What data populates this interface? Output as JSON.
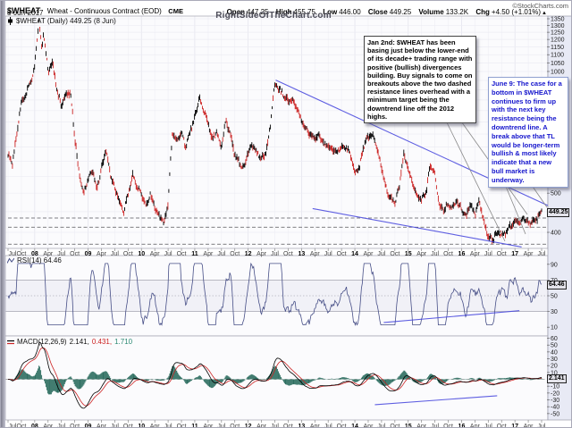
{
  "header": {
    "symbol": "$WHEAT",
    "description": "Wheat - Continuous Contract (EOD)",
    "exchange": "CME",
    "date": "8-Jun-2017",
    "copyright": "©StockCharts.com",
    "quote": {
      "open_label": "Open",
      "open": "447.25",
      "high_label": "High",
      "high": "455.75",
      "low_label": "Low",
      "low": "446.00",
      "close_label": "Close",
      "close": "449.25",
      "volume_label": "Volume",
      "volume": "133.2K",
      "chg_label": "Chg",
      "chg": "+4.50 (+1.01%)",
      "chg_arrow": "▲"
    }
  },
  "watermark": "RightSideOfTheChart.com",
  "main_panel": {
    "legend": "$WHEAT (Daily) 449.25 (8 Jun)",
    "price_tag": "449.25"
  },
  "rsi_panel": {
    "legend": "RSI(14) 64.46",
    "tag": "64.46"
  },
  "macd_panel": {
    "name": "MACD(12,26,9)",
    "macd_value": "2.141,",
    "signal_value": "0.431,",
    "hist_value": "1.710",
    "tag": "2.141"
  },
  "annotations": {
    "jan2": {
      "text": "Jan 2nd: $WHEAT has been basing just below the lower-end of its decade+ trading range with positive (bullish) divergences building. Buy signals to come on breakouts above the two dashed resistance lines overhead with a minimum target being the downtrend line off the 2012 highs.",
      "pointers": [
        [
          497,
          132,
          564,
          269
        ],
        [
          513,
          132,
          589,
          239
        ]
      ]
    },
    "jun9": {
      "text": "June 9: The case for a bottom in $WHEAT continues to firm up with the next key resistance being the downtrend line. A break above that TL would be longer-term bullish & most likely indicate that a new bull market is underway.",
      "pointers": [
        [
          552,
          176,
          587,
          261
        ],
        [
          573,
          176,
          611,
          231
        ]
      ]
    }
  },
  "chart_data": {
    "type": "candlestick",
    "title": "$WHEAT Wheat - Continuous Contract (EOD) CME, Daily",
    "x_range": "Jul 2007 - Jul 2017",
    "y_axis": {
      "scale": "log",
      "ticks": [
        1350,
        1300,
        1250,
        1200,
        1150,
        1100,
        1050,
        1000,
        950,
        900,
        850,
        800,
        750,
        700,
        650,
        600,
        550,
        500,
        450,
        400
      ],
      "current_price": 449.25
    },
    "x_ticks": {
      "months": [
        0,
        3,
        6,
        9,
        12,
        15,
        18,
        21,
        24,
        27,
        30,
        33,
        36,
        39,
        42,
        45,
        48,
        51,
        54,
        57,
        60,
        63,
        66,
        69,
        72,
        75,
        78,
        81,
        84,
        87,
        90,
        93,
        96,
        99,
        102,
        105,
        108,
        111,
        114,
        117,
        120
      ],
      "labels": [
        "Jul",
        "Oct",
        "08",
        "Apr",
        "Jul",
        "Oct",
        "09",
        "Apr",
        "Jul",
        "Oct",
        "10",
        "Apr",
        "Jul",
        "Oct",
        "11",
        "Apr",
        "Jul",
        "Oct",
        "12",
        "Apr",
        "Jul",
        "Oct",
        "13",
        "Apr",
        "Jul",
        "Oct",
        "14",
        "Apr",
        "Jul",
        "Oct",
        "15",
        "Apr",
        "Jul",
        "Oct",
        "16",
        "Apr",
        "Jul",
        "Oct",
        "17",
        "Apr",
        "Jul"
      ]
    },
    "price_anchors": [
      [
        0,
        620
      ],
      [
        1,
        585
      ],
      [
        2,
        700
      ],
      [
        3,
        840
      ],
      [
        4,
        880
      ],
      [
        5,
        940
      ],
      [
        6,
        1020
      ],
      [
        7,
        1330
      ],
      [
        7.6,
        1130
      ],
      [
        8,
        1240
      ],
      [
        9,
        1000
      ],
      [
        10,
        1060
      ],
      [
        11,
        890
      ],
      [
        12,
        820
      ],
      [
        13,
        870
      ],
      [
        14,
        890
      ],
      [
        15,
        690
      ],
      [
        16,
        555
      ],
      [
        17,
        495
      ],
      [
        18,
        540
      ],
      [
        19,
        575
      ],
      [
        20,
        515
      ],
      [
        21,
        575
      ],
      [
        22,
        635
      ],
      [
        23,
        555
      ],
      [
        24,
        515
      ],
      [
        25,
        478
      ],
      [
        26,
        452
      ],
      [
        27,
        495
      ],
      [
        28,
        555
      ],
      [
        29,
        515
      ],
      [
        30,
        498
      ],
      [
        31,
        468
      ],
      [
        32,
        498
      ],
      [
        33,
        458
      ],
      [
        34,
        438
      ],
      [
        35,
        418
      ],
      [
        36,
        470
      ],
      [
        37,
        715
      ],
      [
        38,
        672
      ],
      [
        39,
        705
      ],
      [
        40,
        645
      ],
      [
        41,
        712
      ],
      [
        42,
        775
      ],
      [
        43,
        858
      ],
      [
        44,
        795
      ],
      [
        45,
        738
      ],
      [
        46,
        678
      ],
      [
        47,
        715
      ],
      [
        48,
        648
      ],
      [
        49,
        755
      ],
      [
        50,
        695
      ],
      [
        51,
        618
      ],
      [
        52,
        598
      ],
      [
        53,
        578
      ],
      [
        54,
        636
      ],
      [
        55,
        655
      ],
      [
        56,
        628
      ],
      [
        57,
        607
      ],
      [
        58,
        635
      ],
      [
        59,
        735
      ],
      [
        60,
        928
      ],
      [
        61,
        898
      ],
      [
        62,
        868
      ],
      [
        63,
        848
      ],
      [
        64,
        858
      ],
      [
        65,
        818
      ],
      [
        66,
        748
      ],
      [
        67,
        718
      ],
      [
        68,
        698
      ],
      [
        69,
        688
      ],
      [
        70,
        698
      ],
      [
        71,
        658
      ],
      [
        72,
        648
      ],
      [
        73,
        638
      ],
      [
        74,
        636
      ],
      [
        75,
        658
      ],
      [
        76,
        652
      ],
      [
        77,
        618
      ],
      [
        78,
        558
      ],
      [
        79,
        578
      ],
      [
        80,
        655
      ],
      [
        81,
        688
      ],
      [
        82,
        698
      ],
      [
        83,
        638
      ],
      [
        84,
        578
      ],
      [
        85,
        518
      ],
      [
        86,
        488
      ],
      [
        87,
        472
      ],
      [
        88,
        515
      ],
      [
        89,
        618
      ],
      [
        90,
        578
      ],
      [
        91,
        528
      ],
      [
        92,
        498
      ],
      [
        93,
        478
      ],
      [
        94,
        498
      ],
      [
        95,
        588
      ],
      [
        96,
        556
      ],
      [
        97,
        468
      ],
      [
        98,
        452
      ],
      [
        99,
        468
      ],
      [
        100,
        458
      ],
      [
        101,
        478
      ],
      [
        102,
        458
      ],
      [
        103,
        438
      ],
      [
        104,
        468
      ],
      [
        105,
        442
      ],
      [
        106,
        478
      ],
      [
        107,
        428
      ],
      [
        108,
        392
      ],
      [
        109,
        383
      ],
      [
        110,
        398
      ],
      [
        111,
        392
      ],
      [
        112,
        404
      ],
      [
        113,
        418
      ],
      [
        114,
        428
      ],
      [
        115,
        418
      ],
      [
        116,
        432
      ],
      [
        117,
        422
      ],
      [
        118,
        428
      ],
      [
        119,
        436
      ],
      [
        120,
        449
      ]
    ],
    "dashed_resistance_levels": [
      434,
      412,
      374
    ],
    "trendlines": {
      "downtrend_2012_highs": {
        "from_month": 60.2,
        "from_price": 952,
        "to_month": 121.4,
        "to_price": 466
      },
      "lower_channel": {
        "from_month": 68.5,
        "from_price": 458,
        "to_month": 115.5,
        "to_price": 368
      }
    },
    "rsi": {
      "period": 14,
      "value": 64.46,
      "ticks": [
        90,
        70,
        50,
        30,
        10
      ],
      "overbought": 70,
      "midline": 50,
      "oversold": 30,
      "divergence_line": {
        "from_month": 84.5,
        "from_value": 16,
        "to_month": 115,
        "to_value": 31
      }
    },
    "macd": {
      "params": "12,26,9",
      "macd": 2.141,
      "signal": 0.431,
      "hist": 1.71,
      "ticks": [
        60,
        50,
        40,
        30,
        20,
        10,
        -10,
        -20,
        -30,
        -40,
        -50
      ],
      "divergence_line": {
        "from_month": 82.5,
        "from_value": -37,
        "to_month": 110,
        "to_value": -24
      }
    }
  }
}
